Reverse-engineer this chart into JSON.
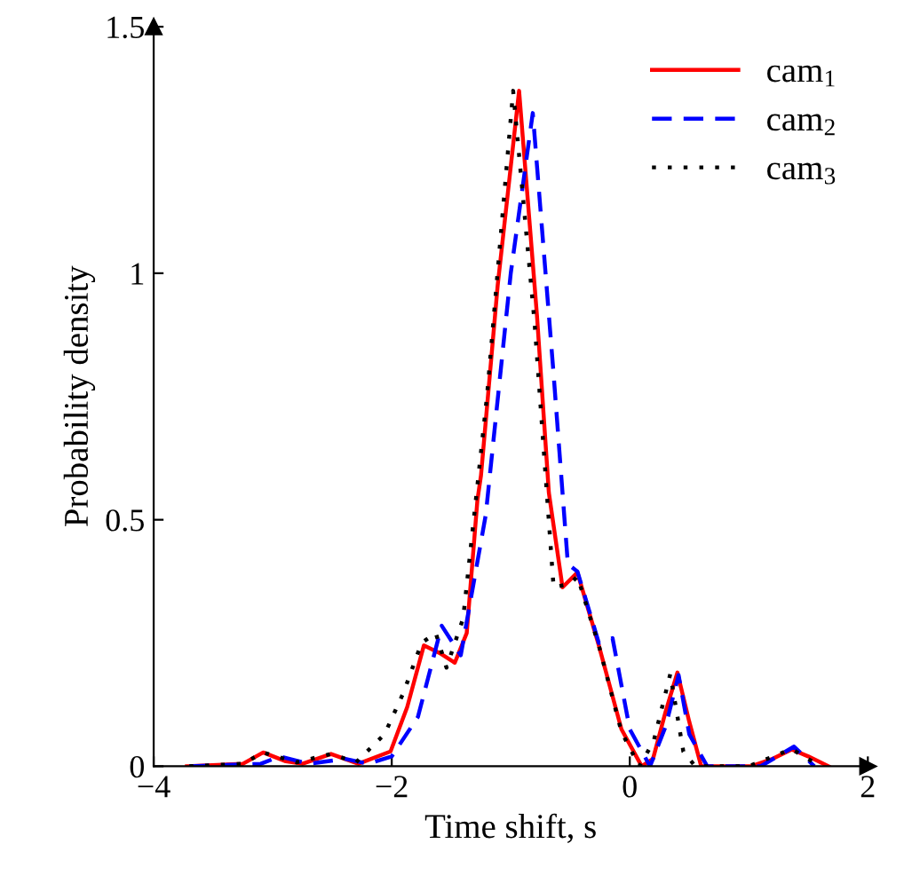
{
  "chart_data": {
    "type": "line",
    "xlabel": "Time shift, s",
    "ylabel": "Probability density",
    "xlim": [
      -4,
      2
    ],
    "ylim": [
      0,
      1.5
    ],
    "xticks": [
      -4,
      -2,
      0,
      2
    ],
    "yticks": [
      0,
      0.5,
      1,
      1.5
    ],
    "grid": false,
    "legend": "top right",
    "series": [
      {
        "name": "cam$_{1}$",
        "color": "#ff0000",
        "line_style": "solid",
        "x": [
          -3.72,
          -3.25,
          -3.08,
          -2.89,
          -2.75,
          -2.51,
          -2.28,
          -2.01,
          -1.87,
          -1.73,
          -1.6,
          -1.47,
          -1.37,
          -1.28,
          -1.25,
          -1.11,
          -0.93,
          -0.78,
          -0.68,
          -0.565,
          -0.44,
          -0.26,
          -0.07,
          0.1,
          0.195,
          0.3,
          0.4,
          0.5,
          0.6,
          1.02,
          1.2,
          1.36,
          1.5,
          1.67
        ],
        "values": [
          0,
          0.005,
          0.028,
          0.01,
          0.005,
          0.025,
          0.005,
          0.03,
          0.12,
          0.245,
          0.23,
          0.21,
          0.27,
          0.54,
          0.59,
          0.975,
          1.37,
          0.915,
          0.555,
          0.363,
          0.393,
          0.245,
          0.075,
          0,
          0.015,
          0.11,
          0.19,
          0.09,
          0,
          0,
          0.015,
          0.034,
          0.02,
          0
        ]
      },
      {
        "name": "cam$_{2}$",
        "color": "#0000ff",
        "line_style": "dashed",
        "x": [
          -3.7,
          -3.1,
          -2.94,
          -2.7,
          -2.39,
          -2.2,
          -2.0,
          -1.78,
          -1.58,
          -1.42,
          -1.21,
          -1.0,
          -0.815,
          -0.64,
          -0.52,
          -0.44,
          -0.26,
          -0.145,
          0.0,
          0.17,
          0.3,
          0.41,
          0.5,
          0.65,
          1.1,
          1.38,
          1.55
        ],
        "values": [
          0,
          0.005,
          0.02,
          0.005,
          0.015,
          0.005,
          0.02,
          0.1,
          0.285,
          0.225,
          0.51,
          1.0,
          1.325,
          0.795,
          0.41,
          0.395,
          0.25,
          0.26,
          0.075,
          0,
          0.08,
          0.185,
          0.065,
          0,
          0,
          0.04,
          0
        ]
      },
      {
        "name": "cam$_{3}$",
        "color": "#000000",
        "line_style": "dotted",
        "x": [
          -3.7,
          -3.25,
          -3.08,
          -2.8,
          -2.51,
          -2.3,
          -2.06,
          -1.9,
          -1.75,
          -1.63,
          -1.54,
          -1.4,
          -1.2,
          -0.98,
          -0.8,
          -0.64,
          -0.5,
          -0.44,
          -0.26,
          -0.07,
          0.08,
          0.2,
          0.34,
          0.45,
          0.55,
          1.0,
          1.36,
          1.6
        ],
        "values": [
          0,
          0.005,
          0.028,
          0.008,
          0.025,
          0.008,
          0.065,
          0.15,
          0.25,
          0.27,
          0.2,
          0.3,
          0.75,
          1.37,
          0.9,
          0.363,
          0.37,
          0.385,
          0.245,
          0.07,
          0,
          0.05,
          0.187,
          0.03,
          0,
          0,
          0.035,
          0
        ]
      }
    ]
  }
}
